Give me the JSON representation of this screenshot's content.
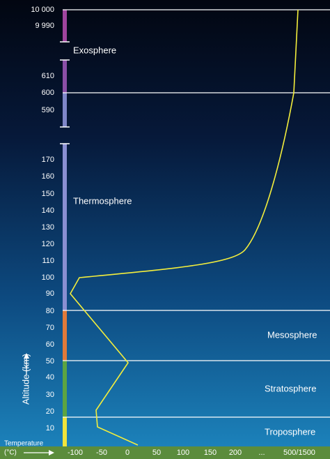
{
  "altitude_axis": {
    "title": "Altitude (km)",
    "ticks": [
      "10 000",
      "9 990",
      "610",
      "600",
      "590",
      "170",
      "160",
      "150",
      "140",
      "130",
      "120",
      "110",
      "100",
      "90",
      "80",
      "70",
      "60",
      "50",
      "40",
      "30",
      "20",
      "10"
    ]
  },
  "layers": [
    "Exosphere",
    "Thermosphere",
    "Mesosphere",
    "Stratosphere",
    "Troposphere"
  ],
  "temperature_axis": {
    "title": "Temperature",
    "unit": "(°C)",
    "ticks": [
      "-100",
      "-50",
      "0",
      "50",
      "100",
      "150",
      "200",
      "...",
      "500/1500"
    ]
  }
}
